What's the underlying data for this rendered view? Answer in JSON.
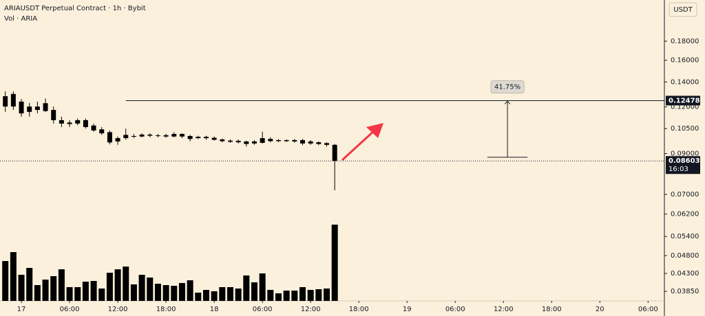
{
  "chart_data": {
    "type": "candlestick",
    "title": "ARIAUSDT Perpetual Contract · 1h · Bybit",
    "subtitle": "Vol · ARIA",
    "currency": "USDT",
    "log_scale": true,
    "ylim": [
      0.0363,
      0.232
    ],
    "yticks": [
      {
        "value": 0.18,
        "label": "0.18000"
      },
      {
        "value": 0.16,
        "label": "0.16000"
      },
      {
        "value": 0.14,
        "label": "0.14000"
      },
      {
        "value": 0.12,
        "label": "0.12000"
      },
      {
        "value": 0.105,
        "label": "0.10500"
      },
      {
        "value": 0.09,
        "label": "0.09000"
      },
      {
        "value": 0.07,
        "label": "0.07000"
      },
      {
        "value": 0.062,
        "label": "0.06200"
      },
      {
        "value": 0.054,
        "label": "0.05400"
      },
      {
        "value": 0.048,
        "label": "0.04800"
      },
      {
        "value": 0.043,
        "label": "0.04300"
      },
      {
        "value": 0.0385,
        "label": "0.03850"
      }
    ],
    "xlim": [
      -2.66,
      80.03
    ],
    "xticks": [
      {
        "value": 0,
        "label": "17"
      },
      {
        "value": 6,
        "label": "06:00"
      },
      {
        "value": 12,
        "label": "12:00"
      },
      {
        "value": 18,
        "label": "18:00"
      },
      {
        "value": 24,
        "label": "18"
      },
      {
        "value": 30,
        "label": "06:00"
      },
      {
        "value": 36,
        "label": "12:00"
      },
      {
        "value": 42,
        "label": "18:00"
      },
      {
        "value": 48,
        "label": "19"
      },
      {
        "value": 54,
        "label": "06:00"
      },
      {
        "value": 60,
        "label": "12:00"
      },
      {
        "value": 66,
        "label": "18:00"
      },
      {
        "value": 72,
        "label": "20"
      },
      {
        "value": 78,
        "label": "06:00"
      }
    ],
    "x": [
      -2,
      -1,
      0,
      1,
      2,
      3,
      4,
      5,
      6,
      7,
      8,
      9,
      10,
      11,
      12,
      13,
      14,
      15,
      16,
      17,
      18,
      19,
      20,
      21,
      22,
      23,
      24,
      25,
      26,
      27,
      28,
      29,
      30,
      31,
      32,
      33,
      34,
      35,
      36,
      37,
      38,
      39
    ],
    "open": [
      0.1282,
      0.1203,
      0.124,
      0.1164,
      0.1203,
      0.117,
      0.1178,
      0.1106,
      0.109,
      0.1083,
      0.1106,
      0.107,
      0.1045,
      0.1027,
      0.097,
      0.099,
      0.1,
      0.1,
      0.1012,
      0.1005,
      0.1008,
      0.1,
      0.1016,
      0.1003,
      0.099,
      0.0998,
      0.0992,
      0.0982,
      0.0975,
      0.0965,
      0.097,
      0.0958,
      0.0962,
      0.0985,
      0.0972,
      0.0978,
      0.097,
      0.0978,
      0.0958,
      0.0965,
      0.096,
      0.095
    ],
    "high": [
      0.1321,
      0.1321,
      0.126,
      0.123,
      0.124,
      0.1264,
      0.1203,
      0.113,
      0.1106,
      0.1118,
      0.1118,
      0.1083,
      0.106,
      0.1038,
      0.1,
      0.105,
      0.1016,
      0.102,
      0.102,
      0.1016,
      0.1016,
      0.1027,
      0.102,
      0.101,
      0.1005,
      0.1005,
      0.1,
      0.0988,
      0.0982,
      0.0982,
      0.0975,
      0.0978,
      0.103,
      0.0995,
      0.0985,
      0.0982,
      0.0985,
      0.0985,
      0.0978,
      0.097,
      0.0965,
      0.0955
    ],
    "low": [
      0.1164,
      0.1178,
      0.113,
      0.113,
      0.1153,
      0.1164,
      0.1083,
      0.106,
      0.106,
      0.1072,
      0.105,
      0.103,
      0.101,
      0.0953,
      0.095,
      0.098,
      0.099,
      0.0995,
      0.0995,
      0.0995,
      0.0992,
      0.0995,
      0.099,
      0.097,
      0.0985,
      0.098,
      0.0975,
      0.0965,
      0.0962,
      0.0958,
      0.094,
      0.095,
      0.0958,
      0.0965,
      0.0966,
      0.0966,
      0.0962,
      0.0948,
      0.095,
      0.0948,
      0.094,
      0.0718
    ],
    "close": [
      0.1203,
      0.13,
      0.1153,
      0.1203,
      0.1178,
      0.1228,
      0.1106,
      0.1083,
      0.108,
      0.1106,
      0.106,
      0.1038,
      0.102,
      0.0964,
      0.099,
      0.101,
      0.1003,
      0.1012,
      0.1005,
      0.1007,
      0.1,
      0.1016,
      0.1,
      0.0985,
      0.0998,
      0.099,
      0.098,
      0.0972,
      0.0968,
      0.0974,
      0.0955,
      0.097,
      0.099,
      0.0972,
      0.0978,
      0.0972,
      0.0978,
      0.0958,
      0.097,
      0.0955,
      0.095,
      0.086
    ],
    "volume": [
      58,
      71,
      38,
      48,
      23,
      31,
      36,
      46,
      20,
      20,
      28,
      29,
      18,
      41,
      46,
      50,
      24,
      38,
      34,
      25,
      23,
      22,
      26,
      30,
      12,
      16,
      14,
      20,
      20,
      18,
      37,
      27,
      40,
      16,
      11,
      15,
      15,
      20,
      16,
      17,
      18,
      111
    ],
    "color": "#000000",
    "horizontal_line": {
      "value": 0.12478,
      "x_start": 13
    },
    "last_price": {
      "value": 0.08603,
      "countdown": "16:03"
    },
    "measure": {
      "from": 0.088,
      "to": 0.12478,
      "x": [
        58,
        63
      ],
      "label": "41.75%"
    }
  }
}
